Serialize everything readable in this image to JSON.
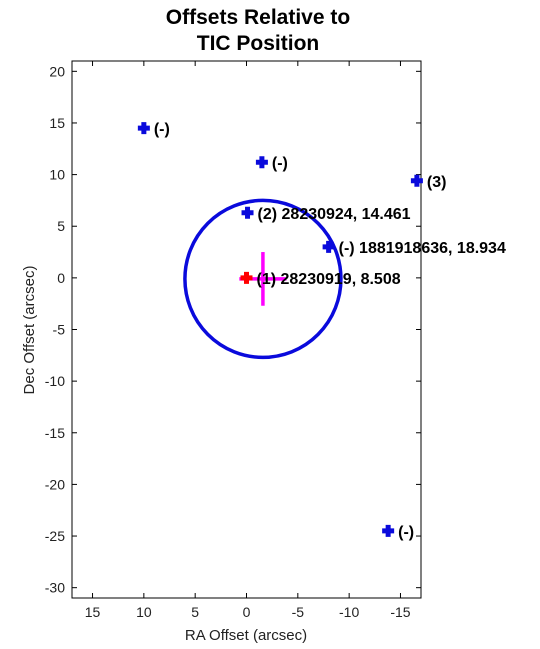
{
  "chart_data": {
    "type": "scatter",
    "title_lines": [
      "Offsets Relative to",
      "TIC Position"
    ],
    "xlabel": "RA Offset (arcsec)",
    "ylabel": "Dec Offset (arcsec)",
    "xlim": [
      17.0,
      -17.0
    ],
    "ylim": [
      -31.0,
      21.0
    ],
    "x_reversed": true,
    "xticks": [
      15,
      10,
      5,
      0,
      -5,
      -10,
      -15
    ],
    "yticks": [
      20,
      15,
      10,
      5,
      0,
      -5,
      -10,
      -15,
      -20,
      -25,
      -30
    ],
    "grid": false,
    "colors": {
      "stars": "#0a0adc",
      "target": "#ff0000",
      "centroid": "#ff00ff",
      "aperture": "#0a0adc"
    },
    "stars": [
      {
        "ra": 10.0,
        "dec": 14.5,
        "label": "(-)"
      },
      {
        "ra": -1.5,
        "dec": 11.2,
        "label": "(-)"
      },
      {
        "ra": -16.6,
        "dec": 9.4,
        "label": "(3)"
      },
      {
        "ra": -0.1,
        "dec": 6.3,
        "label": "(2) 28230924, 14.461"
      },
      {
        "ra": -8.0,
        "dec": 3.0,
        "label": "(-) 1881918636, 18.934"
      },
      {
        "ra": -13.8,
        "dec": -24.5,
        "label": "(-)"
      }
    ],
    "target": {
      "ra": 0.0,
      "dec": 0.0,
      "label": "(1) 28230919, 8.508"
    },
    "centroid": {
      "ra": -1.6,
      "dec": -0.1,
      "ra_err": 2.3,
      "dec_err": 2.6
    },
    "aperture": {
      "ra": -1.6,
      "dec": -0.1,
      "radius": 7.6
    }
  }
}
